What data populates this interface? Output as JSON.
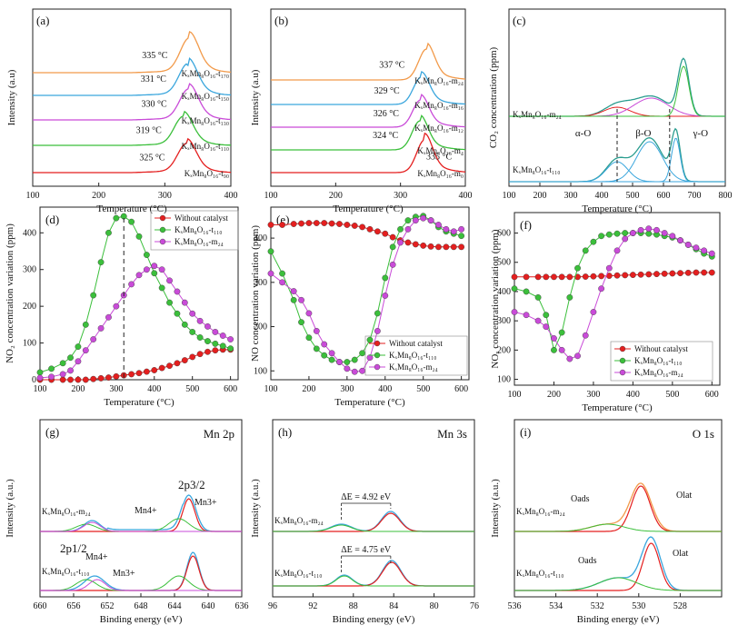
{
  "colors": {
    "red": "#e41f1f",
    "green": "#3bbf3b",
    "magenta": "#c94bd8",
    "blue": "#3aa6dd",
    "orange": "#f29a4a",
    "teal": "#2a9d8f"
  },
  "chart_data": [
    {
      "panel": "(a)",
      "type": "line",
      "xlabel": "Temperature (°C)",
      "ylabel": "Intensity (a.u)",
      "xlim": [
        100,
        400
      ],
      "xticks": [
        "100",
        "200",
        "300",
        "400"
      ],
      "series": [
        {
          "name": "KxMn8O16-t90",
          "label": "KₓMn₈O₁₆-t₉₀",
          "color": "#e41f1f",
          "peak_x": 333,
          "peak_label": "325 °C"
        },
        {
          "name": "KxMn8O16-t110",
          "label": "KₓMn₈O₁₆-t₁₁₀",
          "color": "#3bbf3b",
          "peak_x": 328,
          "peak_label": "319 °C"
        },
        {
          "name": "KxMn8O16-t130",
          "label": "KₓMn₈O₁₆-t₁₃₀",
          "color": "#c94bd8",
          "peak_x": 336,
          "peak_label": "330 °C"
        },
        {
          "name": "KxMn8O16-t150",
          "label": "KₓMn₈O₁₆-t₁₅₀",
          "color": "#3aa6dd",
          "peak_x": 335,
          "peak_label": "331 °C"
        },
        {
          "name": "KxMn8O16-t170",
          "label": "KₓMn₈O₁₆-t₁₇₀",
          "color": "#f29a4a",
          "peak_x": 337,
          "peak_label": "335 °C"
        }
      ]
    },
    {
      "panel": "(b)",
      "type": "line",
      "xlabel": "Temperature (°C)",
      "ylabel": "Intensity (a.u)",
      "xlim": [
        100,
        400
      ],
      "xticks": [
        "100",
        "200",
        "300",
        "400"
      ],
      "series": [
        {
          "name": "KxMn8O16-m0",
          "label": "KₓMn₈O₁₆-m₀",
          "color": "#e41f1f",
          "peak_x": 337,
          "peak_label": "335 °C"
        },
        {
          "name": "KxMn8O16-m4",
          "label": "KₓMn₈O₁₆-m₄",
          "color": "#3bbf3b",
          "peak_x": 330,
          "peak_label": "324 °C"
        },
        {
          "name": "KxMn8O16-m12",
          "label": "KₓMn₈O₁₆-m₁₂",
          "color": "#c94bd8",
          "peak_x": 331,
          "peak_label": "326 °C"
        },
        {
          "name": "KxMn8O16-m16",
          "label": "KₓMn₈O₁₆-m₁₆",
          "color": "#3aa6dd",
          "peak_x": 332,
          "peak_label": "329 °C"
        },
        {
          "name": "KxMn8O16-m24",
          "label": "KₓMn₈O₁₆-m₂₄",
          "color": "#f29a4a",
          "peak_x": 340,
          "peak_label": "337 °C"
        }
      ]
    },
    {
      "panel": "(c)",
      "type": "line",
      "xlabel": "Temperature (°C)",
      "ylabel": "CO₂ concentration (ppm)",
      "xlim": [
        100,
        800
      ],
      "xticks": [
        "100",
        "200",
        "300",
        "400",
        "500",
        "600",
        "700",
        "800"
      ],
      "series": [
        {
          "name": "KxMn8O16-m24",
          "label": "KₓMn₈O₁₆-m₂₄"
        },
        {
          "name": "KxMn8O16-t110",
          "label": "KₓMn₈O₁₆-t₁₁₀"
        }
      ],
      "regions": [
        "α-O",
        "β-O",
        "γ-O"
      ],
      "dividers_x": [
        450,
        620
      ]
    },
    {
      "panel": "(d)",
      "type": "line",
      "xlabel": "Temperature (°C)",
      "ylabel": "NO₂ concentration variation (ppm)",
      "xlim": [
        100,
        620
      ],
      "ylim": [
        0,
        470
      ],
      "xticks": [
        "100",
        "200",
        "300",
        "400",
        "500",
        "600"
      ],
      "yticks": [
        "0",
        "100",
        "200",
        "300",
        "400"
      ],
      "x": [
        100,
        130,
        160,
        180,
        200,
        220,
        240,
        260,
        280,
        300,
        320,
        340,
        360,
        380,
        400,
        420,
        440,
        460,
        480,
        500,
        520,
        540,
        560,
        580,
        600
      ],
      "series": [
        {
          "name": "Without catalyst",
          "color": "#e41f1f",
          "values": [
            0,
            0,
            0,
            0,
            0,
            0,
            2,
            4,
            6,
            9,
            12,
            15,
            18,
            22,
            26,
            32,
            38,
            45,
            53,
            62,
            70,
            76,
            80,
            82,
            82
          ]
        },
        {
          "name": "KxMn8O16-t110",
          "label": "KₓMn₈O₁₆-t₁₁₀",
          "color": "#3bbf3b",
          "values": [
            20,
            30,
            45,
            60,
            90,
            150,
            230,
            320,
            400,
            440,
            445,
            430,
            390,
            340,
            290,
            250,
            210,
            180,
            150,
            130,
            115,
            105,
            98,
            92,
            85
          ]
        },
        {
          "name": "KxMn8O16-m24",
          "label": "KₓMn₈O₁₆-m₂₄",
          "color": "#c94bd8",
          "values": [
            5,
            8,
            15,
            25,
            50,
            80,
            110,
            140,
            170,
            200,
            230,
            260,
            285,
            300,
            310,
            300,
            270,
            240,
            210,
            180,
            160,
            145,
            130,
            120,
            110
          ]
        }
      ],
      "dashed_x": 320
    },
    {
      "panel": "(e)",
      "type": "line",
      "xlabel": "Temperature (°C)",
      "ylabel": "NO concentration variation (ppm)",
      "xlim": [
        100,
        620
      ],
      "ylim": [
        80,
        470
      ],
      "xticks": [
        "100",
        "200",
        "300",
        "400",
        "500",
        "600"
      ],
      "yticks": [
        "100",
        "200",
        "300",
        "400"
      ],
      "x": [
        100,
        130,
        160,
        180,
        200,
        220,
        240,
        260,
        280,
        300,
        320,
        340,
        360,
        380,
        400,
        420,
        440,
        460,
        480,
        500,
        520,
        540,
        560,
        580,
        600
      ],
      "series": [
        {
          "name": "Without catalyst",
          "color": "#e41f1f",
          "values": [
            430,
            430,
            432,
            433,
            434,
            434,
            434,
            433,
            432,
            430,
            428,
            425,
            420,
            415,
            410,
            402,
            395,
            390,
            386,
            383,
            381,
            380,
            380,
            380,
            380
          ]
        },
        {
          "name": "KxMn8O16-t110",
          "label": "KₓMn₈O₁₆-t₁₁₀",
          "color": "#3bbf3b",
          "values": [
            370,
            320,
            260,
            210,
            175,
            150,
            135,
            125,
            120,
            120,
            125,
            140,
            170,
            230,
            310,
            380,
            420,
            440,
            448,
            450,
            440,
            425,
            415,
            410,
            405
          ]
        },
        {
          "name": "KxMn8O16-m24",
          "label": "KₓMn₈O₁₆-m₂₄",
          "color": "#c94bd8",
          "values": [
            320,
            300,
            280,
            260,
            230,
            190,
            160,
            140,
            120,
            105,
            98,
            100,
            130,
            190,
            270,
            340,
            390,
            420,
            440,
            445,
            440,
            430,
            420,
            415,
            420
          ]
        }
      ]
    },
    {
      "panel": "(f)",
      "type": "line",
      "xlabel": "Temperature (°C)",
      "ylabel": "NOₓ concentration variation (ppm)",
      "xlim": [
        100,
        620
      ],
      "ylim": [
        80,
        670
      ],
      "xticks": [
        "100",
        "200",
        "300",
        "400",
        "500",
        "600"
      ],
      "yticks": [
        "100",
        "200",
        "300",
        "400",
        "500",
        "600"
      ],
      "x": [
        100,
        130,
        160,
        180,
        200,
        220,
        240,
        260,
        280,
        300,
        320,
        340,
        360,
        380,
        400,
        420,
        440,
        460,
        480,
        500,
        520,
        540,
        560,
        580,
        600
      ],
      "series": [
        {
          "name": "Without catalyst",
          "color": "#e41f1f",
          "values": [
            450,
            450,
            450,
            450,
            450,
            450,
            450,
            450,
            451,
            452,
            453,
            454,
            455,
            456,
            457,
            458,
            459,
            460,
            461,
            462,
            463,
            464,
            465,
            465,
            465
          ]
        },
        {
          "name": "KxMn8O16-t110",
          "label": "KₓMn₈O₁₆-t₁₁₀",
          "color": "#3bbf3b",
          "values": [
            410,
            400,
            380,
            320,
            200,
            260,
            380,
            480,
            540,
            570,
            590,
            595,
            598,
            600,
            600,
            600,
            598,
            595,
            590,
            585,
            575,
            560,
            545,
            530,
            520
          ]
        },
        {
          "name": "KxMn8O16-m24",
          "label": "KₓMn₈O₁₆-m₂₄",
          "color": "#c94bd8",
          "values": [
            330,
            320,
            300,
            280,
            240,
            200,
            170,
            180,
            250,
            330,
            410,
            480,
            540,
            580,
            600,
            610,
            615,
            610,
            600,
            590,
            575,
            560,
            550,
            540,
            530
          ]
        }
      ]
    },
    {
      "panel": "(g)",
      "type": "line",
      "title": "Mn  2p",
      "xlabel": "Binding energy (eV)",
      "ylabel": "Intensity (a.u.)",
      "xlim": [
        660,
        636
      ],
      "xticks": [
        "660",
        "656",
        "652",
        "648",
        "644",
        "640",
        "636"
      ],
      "series": [
        {
          "name": "KxMn8O16-m24",
          "label": "KₓMn₈O₁₆-m₂₄"
        },
        {
          "name": "KxMn8O16-t110",
          "label": "KₓMn₈O₁₆-t₁₁₀"
        }
      ],
      "annotations": [
        "2p3/2",
        "2p1/2",
        "Mn4+",
        "Mn3+",
        "Mn4+",
        "Mn3+"
      ]
    },
    {
      "panel": "(h)",
      "type": "line",
      "title": "Mn  3s",
      "xlabel": "Binding energy (eV)",
      "ylabel": "Intensity (a.u.)",
      "xlim": [
        96,
        76
      ],
      "xticks": [
        "96",
        "92",
        "88",
        "84",
        "80",
        "76"
      ],
      "series": [
        {
          "name": "KxMn8O16-m24",
          "label": "KₓMn₈O₁₆-m₂₄",
          "delta_e": "ΔE = 4.92 eV"
        },
        {
          "name": "KxMn8O16-t110",
          "label": "KₓMn₈O₁₆-t₁₁₀",
          "delta_e": "ΔE = 4.75 eV"
        }
      ]
    },
    {
      "panel": "(i)",
      "type": "line",
      "title": "O  1s",
      "xlabel": "Binding energy (eV)",
      "ylabel": "Intensity (a.u.)",
      "xlim": [
        536,
        526
      ],
      "xticks": [
        "536",
        "534",
        "532",
        "530",
        "528"
      ],
      "series": [
        {
          "name": "KxMn8O16-m24",
          "label": "KₓMn₈O₁₆-m₂₄"
        },
        {
          "name": "KxMn8O16-t110",
          "label": "KₓMn₈O₁₆-t₁₁₀"
        }
      ],
      "annotations": [
        "Oads",
        "Olat",
        "Oads",
        "Olat"
      ]
    }
  ]
}
